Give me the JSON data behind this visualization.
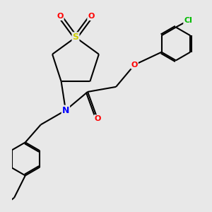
{
  "bg_color": "#e8e8e8",
  "bond_color": "#000000",
  "atom_colors": {
    "S": "#cccc00",
    "O": "#ff0000",
    "N": "#0000ff",
    "Cl": "#00bb00",
    "C": "#000000"
  },
  "bond_width": 1.5,
  "font_size": 8
}
